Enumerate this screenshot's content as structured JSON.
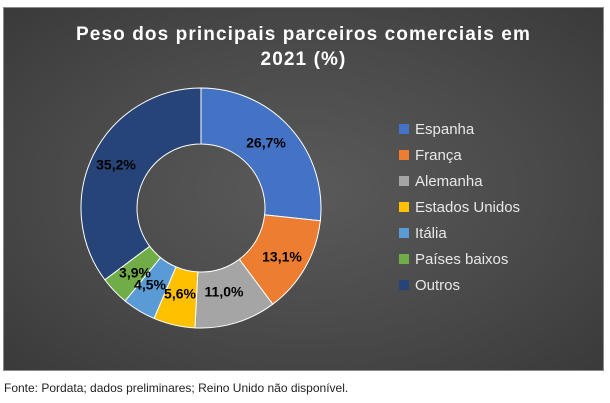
{
  "chart_data": {
    "type": "pie",
    "title_lines": [
      "Peso dos principais parceiros comerciais em",
      "2021 (%)"
    ],
    "donut": true,
    "categories": [
      "Espanha",
      "França",
      "Alemanha",
      "Estados Unidos",
      "Itália",
      "Países baixos",
      "Outros"
    ],
    "values": [
      26.7,
      13.1,
      11.0,
      5.6,
      4.5,
      3.9,
      35.2
    ],
    "data_labels": [
      "26,7%",
      "13,1%",
      "11,0%",
      "5,6%",
      "4,5%",
      "3,9%",
      "35,2%"
    ],
    "colors": [
      "#4472c4",
      "#ed7d31",
      "#a5a5a5",
      "#ffc000",
      "#5b9bd5",
      "#70ad47",
      "#264478"
    ],
    "legend_position": "right"
  },
  "footnote": "Fonte: Pordata; dados preliminares; Reino Unido não disponível."
}
